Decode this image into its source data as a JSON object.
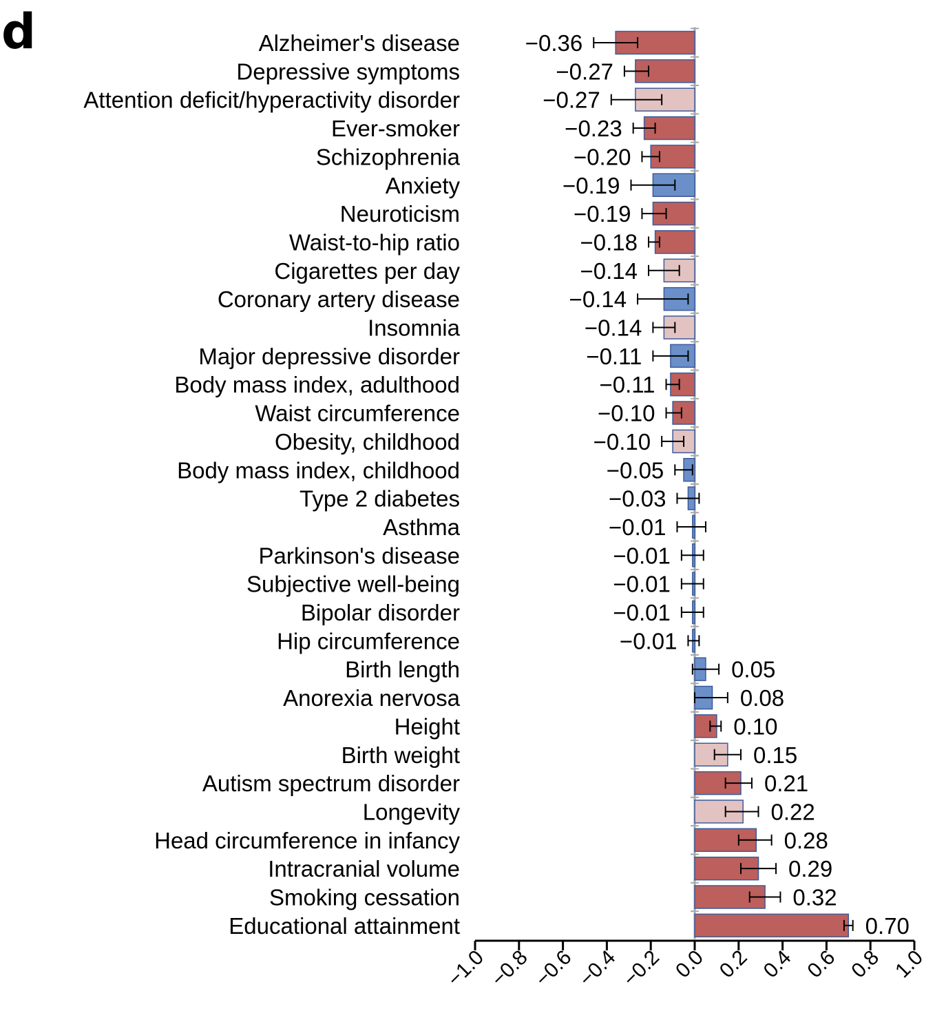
{
  "panel_letter": "d",
  "colors": {
    "dark_red": "#bd5f5c",
    "light_red": "#e3c3c1",
    "blue": "#6b8fc9",
    "bar_edge": "#3d5a99",
    "zero_line": "#a9a9a9",
    "axis": "#000000"
  },
  "chart_data": {
    "type": "bar",
    "orientation": "horizontal",
    "title": "",
    "xlabel": "",
    "ylabel": "",
    "xlim": [
      -1.0,
      1.0
    ],
    "xticks": [
      -1.0,
      -0.8,
      -0.6,
      -0.4,
      -0.2,
      0.0,
      0.2,
      0.4,
      0.6,
      0.8,
      1.0
    ],
    "xtick_labels": [
      "−1.0",
      "−0.8",
      "−0.6",
      "−0.4",
      "−0.2",
      "0.0",
      "0.2",
      "0.4",
      "0.6",
      "0.8",
      "1.0"
    ],
    "grid": false,
    "legend": "none",
    "categories": [
      "Alzheimer's disease",
      "Depressive symptoms",
      "Attention deficit/hyperactivity disorder",
      "Ever-smoker",
      "Schizophrenia",
      "Anxiety",
      "Neuroticism",
      "Waist-to-hip ratio",
      "Cigarettes per day",
      "Coronary artery disease",
      "Insomnia",
      "Major depressive disorder",
      "Body mass index, adulthood",
      "Waist circumference",
      "Obesity, childhood",
      "Body mass index, childhood",
      "Type 2 diabetes",
      "Asthma",
      "Parkinson's disease",
      "Subjective well-being",
      "Bipolar disorder",
      "Hip circumference",
      "Birth length",
      "Anorexia nervosa",
      "Height",
      "Birth weight",
      "Autism spectrum disorder",
      "Longevity",
      "Head circumference in infancy",
      "Intracranial volume",
      "Smoking cessation",
      "Educational attainment"
    ],
    "values": [
      -0.36,
      -0.27,
      -0.27,
      -0.23,
      -0.2,
      -0.19,
      -0.19,
      -0.18,
      -0.14,
      -0.14,
      -0.14,
      -0.11,
      -0.11,
      -0.1,
      -0.1,
      -0.05,
      -0.03,
      -0.01,
      -0.01,
      -0.01,
      -0.01,
      -0.01,
      0.05,
      0.08,
      0.1,
      0.15,
      0.21,
      0.22,
      0.28,
      0.29,
      0.32,
      0.7
    ],
    "value_labels": [
      "−0.36",
      "−0.27",
      "−0.27",
      "−0.23",
      "−0.20",
      "−0.19",
      "−0.19",
      "−0.18",
      "−0.14",
      "−0.14",
      "−0.14",
      "−0.11",
      "−0.11",
      "−0.10",
      "−0.10",
      "−0.05",
      "−0.03",
      "−0.01",
      "−0.01",
      "−0.01",
      "−0.01",
      "−0.01",
      "0.05",
      "0.08",
      "0.10",
      "0.15",
      "0.21",
      "0.22",
      "0.28",
      "0.29",
      "0.32",
      "0.70"
    ],
    "error_low": [
      -0.46,
      -0.32,
      -0.38,
      -0.28,
      -0.24,
      -0.29,
      -0.24,
      -0.21,
      -0.21,
      -0.26,
      -0.19,
      -0.19,
      -0.13,
      -0.13,
      -0.15,
      -0.09,
      -0.08,
      -0.08,
      -0.06,
      -0.06,
      -0.06,
      -0.03,
      -0.01,
      0.0,
      0.07,
      0.09,
      0.14,
      0.14,
      0.2,
      0.21,
      0.25,
      0.68
    ],
    "error_high": [
      -0.26,
      -0.21,
      -0.15,
      -0.18,
      -0.16,
      -0.09,
      -0.13,
      -0.16,
      -0.07,
      -0.03,
      -0.09,
      -0.03,
      -0.07,
      -0.06,
      -0.05,
      -0.01,
      0.02,
      0.05,
      0.04,
      0.04,
      0.04,
      0.02,
      0.11,
      0.15,
      0.12,
      0.21,
      0.26,
      0.29,
      0.35,
      0.37,
      0.39,
      0.72
    ],
    "bar_color_class": [
      "dark_red",
      "dark_red",
      "light_red",
      "dark_red",
      "dark_red",
      "blue",
      "dark_red",
      "dark_red",
      "light_red",
      "blue",
      "light_red",
      "blue",
      "dark_red",
      "dark_red",
      "light_red",
      "blue",
      "blue",
      "blue",
      "blue",
      "blue",
      "blue",
      "blue",
      "blue",
      "blue",
      "dark_red",
      "light_red",
      "dark_red",
      "light_red",
      "dark_red",
      "dark_red",
      "dark_red",
      "dark_red"
    ]
  }
}
